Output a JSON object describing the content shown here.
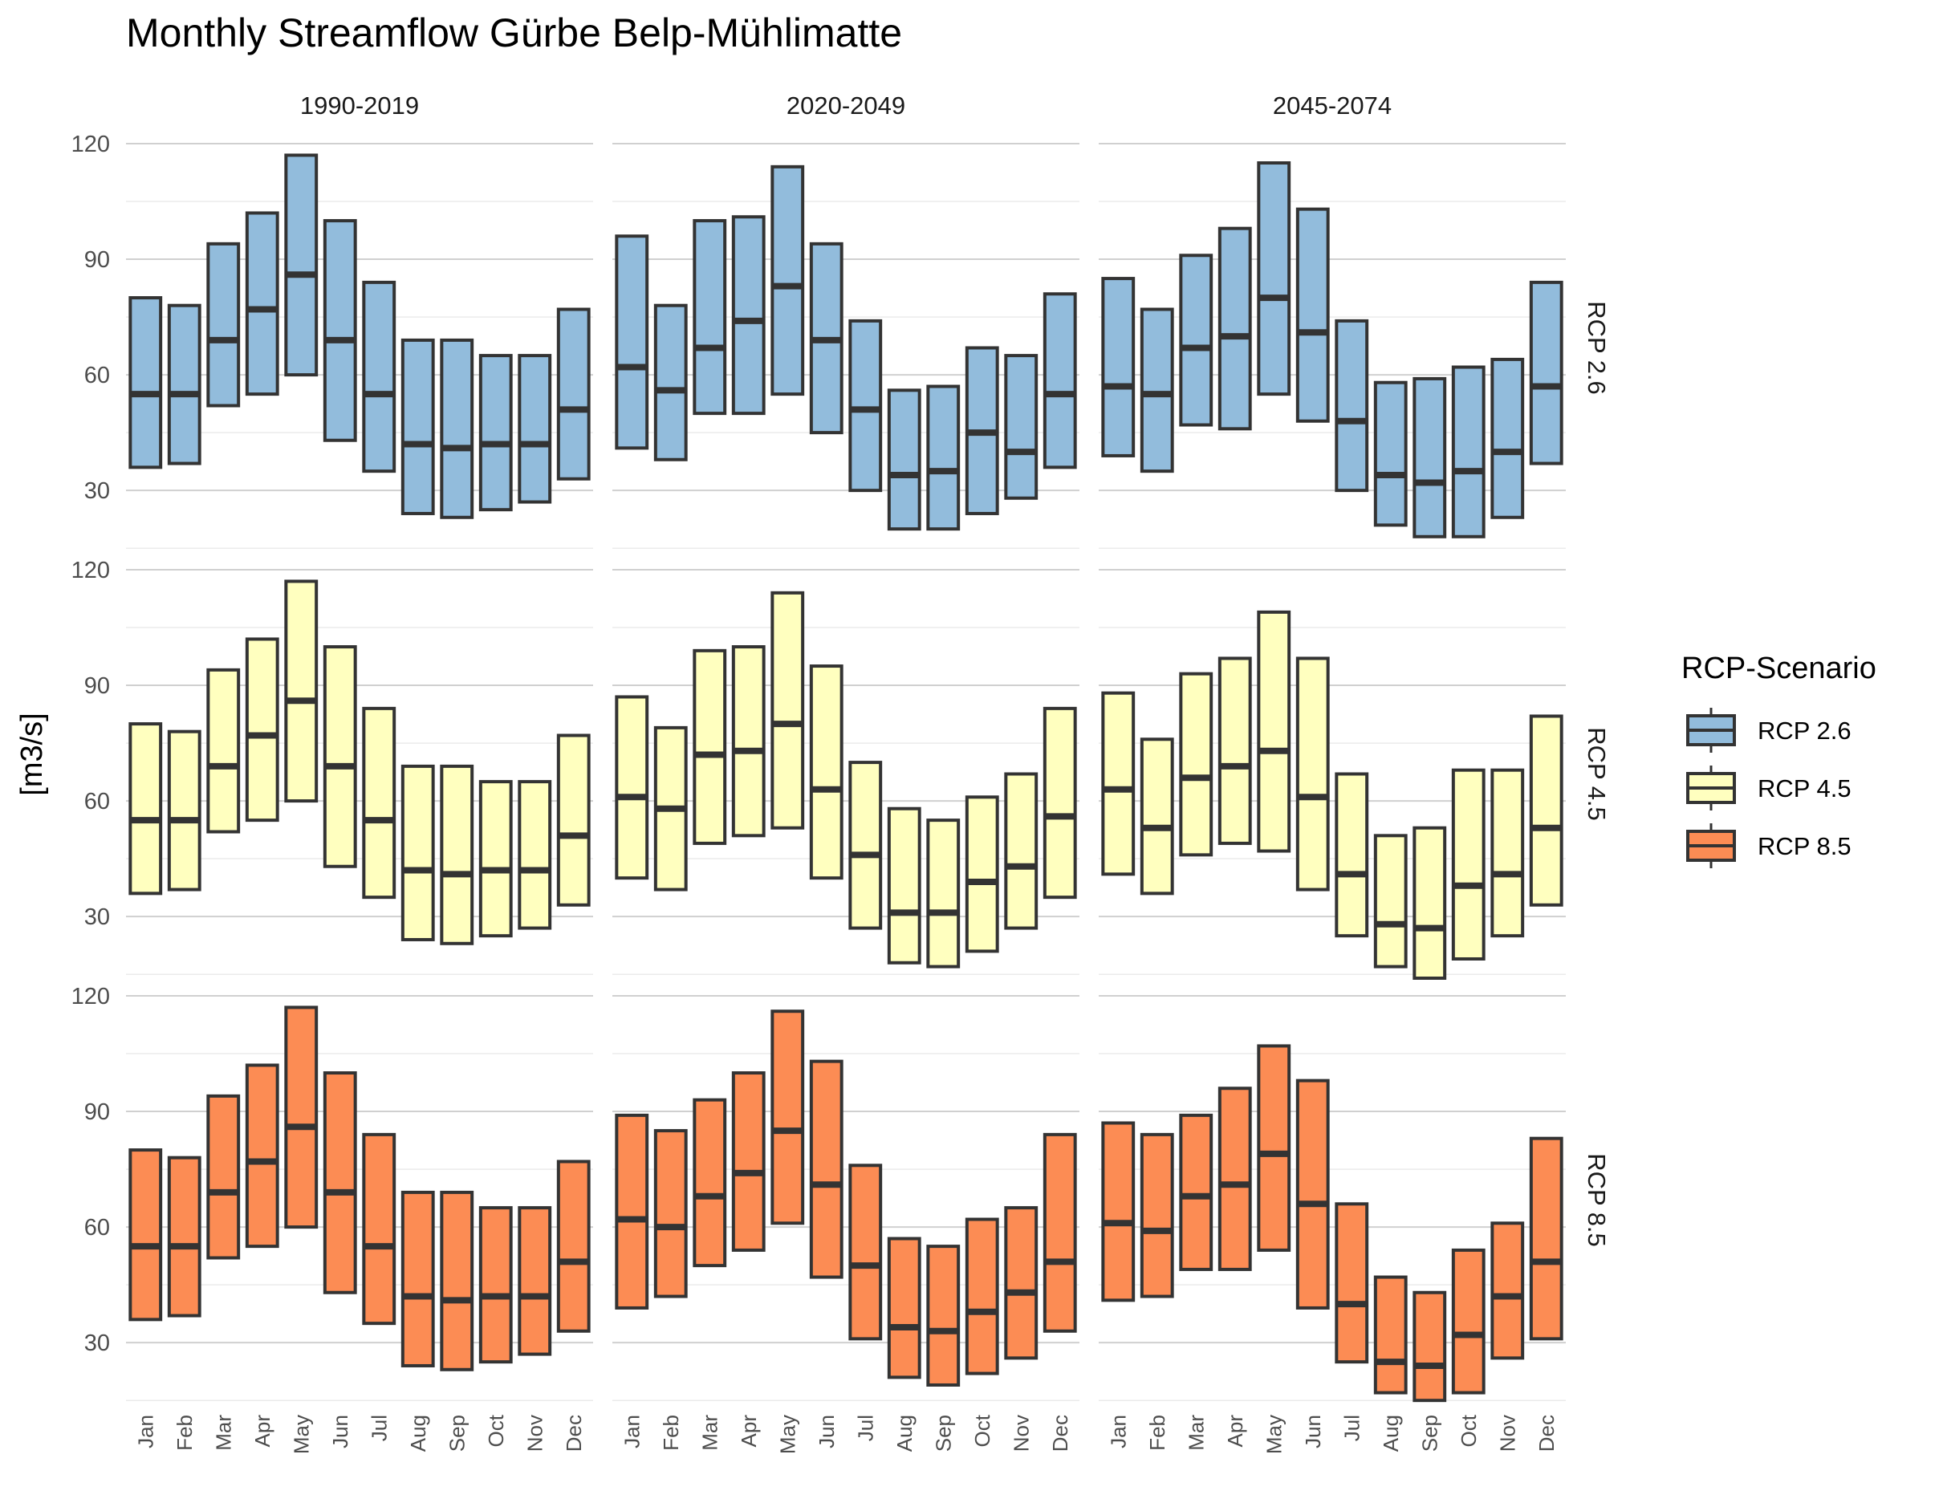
{
  "chart_data": {
    "type": "crossbar",
    "title": "Monthly Streamflow Gürbe Belp-Mühlimatte",
    "ylabel": "[m3/s]",
    "xlabel": "",
    "ylim": [
      9,
      125
    ],
    "yticks": [
      30,
      60,
      90,
      120
    ],
    "grid": true,
    "legend_position": "right",
    "legend_title": "RCP-Scenario",
    "periods": [
      "1990-2019",
      "2020-2049",
      "2045-2074"
    ],
    "scenarios": [
      "RCP 2.6",
      "RCP 4.5",
      "RCP 8.5"
    ],
    "colors": {
      "RCP 2.6": "#92bcdc",
      "RCP 4.5": "#ffffbf",
      "RCP 8.5": "#fc8c54",
      "outline": "#333333"
    },
    "categories": [
      "Jan",
      "Feb",
      "Mar",
      "Apr",
      "May",
      "Jun",
      "Jul",
      "Aug",
      "Sep",
      "Oct",
      "Nov",
      "Dec"
    ],
    "panels": [
      {
        "scenario": "RCP 2.6",
        "period": "1990-2019",
        "min": [
          36,
          37,
          52,
          55,
          60,
          43,
          35,
          24,
          23,
          25,
          27,
          33
        ],
        "median": [
          55,
          55,
          69,
          77,
          86,
          69,
          55,
          42,
          41,
          42,
          42,
          51
        ],
        "max": [
          80,
          78,
          94,
          102,
          117,
          100,
          84,
          69,
          69,
          65,
          65,
          77
        ]
      },
      {
        "scenario": "RCP 2.6",
        "period": "2020-2049",
        "min": [
          41,
          38,
          50,
          50,
          55,
          45,
          30,
          20,
          20,
          24,
          28,
          36
        ],
        "median": [
          62,
          56,
          67,
          74,
          83,
          69,
          51,
          34,
          35,
          45,
          40,
          55
        ],
        "max": [
          96,
          78,
          100,
          101,
          114,
          94,
          74,
          56,
          57,
          67,
          65,
          81
        ]
      },
      {
        "scenario": "RCP 2.6",
        "period": "2045-2074",
        "min": [
          39,
          35,
          47,
          46,
          55,
          48,
          30,
          21,
          18,
          18,
          23,
          37
        ],
        "median": [
          57,
          55,
          67,
          70,
          80,
          71,
          48,
          34,
          32,
          35,
          40,
          57
        ],
        "max": [
          85,
          77,
          91,
          98,
          115,
          103,
          74,
          58,
          59,
          62,
          64,
          84
        ]
      },
      {
        "scenario": "RCP 4.5",
        "period": "1990-2019",
        "min": [
          36,
          37,
          52,
          55,
          60,
          43,
          35,
          24,
          23,
          25,
          27,
          33
        ],
        "median": [
          55,
          55,
          69,
          77,
          86,
          69,
          55,
          42,
          41,
          42,
          42,
          51
        ],
        "max": [
          80,
          78,
          94,
          102,
          117,
          100,
          84,
          69,
          69,
          65,
          65,
          77
        ]
      },
      {
        "scenario": "RCP 4.5",
        "period": "2020-2049",
        "min": [
          40,
          37,
          49,
          51,
          53,
          40,
          27,
          18,
          17,
          21,
          27,
          35
        ],
        "median": [
          61,
          58,
          72,
          73,
          80,
          63,
          46,
          31,
          31,
          39,
          43,
          56
        ],
        "max": [
          87,
          79,
          99,
          100,
          114,
          95,
          70,
          58,
          55,
          61,
          67,
          84
        ]
      },
      {
        "scenario": "RCP 4.5",
        "period": "2045-2074",
        "min": [
          41,
          36,
          46,
          49,
          47,
          37,
          25,
          17,
          14,
          19,
          25,
          33
        ],
        "median": [
          63,
          53,
          66,
          69,
          73,
          61,
          41,
          28,
          27,
          38,
          41,
          53
        ],
        "max": [
          88,
          76,
          93,
          97,
          109,
          97,
          67,
          51,
          53,
          68,
          68,
          82
        ]
      },
      {
        "scenario": "RCP 8.5",
        "period": "1990-2019",
        "min": [
          36,
          37,
          52,
          55,
          60,
          43,
          35,
          24,
          23,
          25,
          27,
          33
        ],
        "median": [
          55,
          55,
          69,
          77,
          86,
          69,
          55,
          42,
          41,
          42,
          42,
          51
        ],
        "max": [
          80,
          78,
          94,
          102,
          117,
          100,
          84,
          69,
          69,
          65,
          65,
          77
        ]
      },
      {
        "scenario": "RCP 8.5",
        "period": "2020-2049",
        "min": [
          39,
          42,
          50,
          54,
          61,
          47,
          31,
          21,
          19,
          22,
          26,
          33
        ],
        "median": [
          62,
          60,
          68,
          74,
          85,
          71,
          50,
          34,
          33,
          38,
          43,
          51
        ],
        "max": [
          89,
          85,
          93,
          100,
          116,
          103,
          76,
          57,
          55,
          62,
          65,
          84
        ]
      },
      {
        "scenario": "RCP 8.5",
        "period": "2045-2074",
        "min": [
          41,
          42,
          49,
          49,
          54,
          39,
          25,
          17,
          15,
          17,
          26,
          31
        ],
        "median": [
          61,
          59,
          68,
          71,
          79,
          66,
          40,
          25,
          24,
          32,
          42,
          51
        ],
        "max": [
          87,
          84,
          89,
          96,
          107,
          98,
          66,
          47,
          43,
          54,
          61,
          83
        ]
      }
    ]
  }
}
